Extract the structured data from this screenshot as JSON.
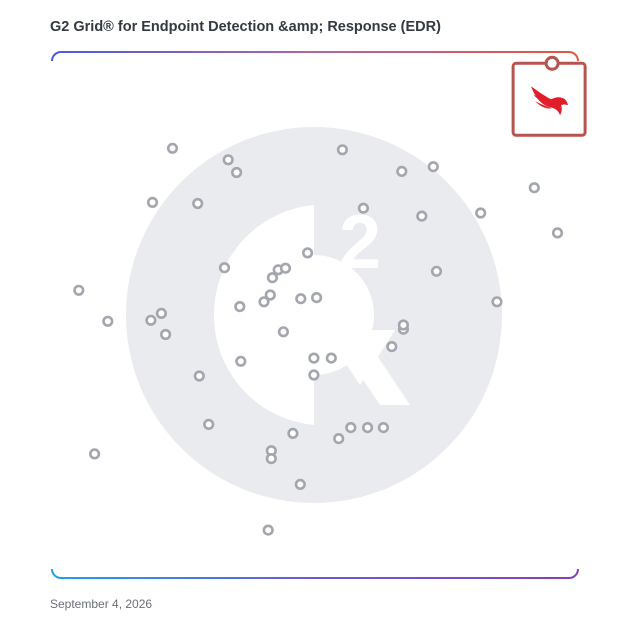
{
  "title": "G2 Grid® for Endpoint Detection &amp; Response (EDR)",
  "date": "September 4, 2026",
  "watermark": {
    "text": "2",
    "icon": "g2-logo-icon"
  },
  "colors": {
    "border_top_left": "#4a5bd9",
    "border_top_right": "#e8553a",
    "border_bottom_left": "#1fa3e0",
    "border_bottom_right": "#8a3fb8",
    "dot": "#a3a6ae",
    "highlight": "#b85450",
    "highlight_logo": "#e11d2a",
    "watermark": "#eaebee"
  },
  "chart_data": {
    "type": "scatter",
    "xlim": [
      0,
      100
    ],
    "ylim": [
      0,
      100
    ],
    "grid": true,
    "points": [
      {
        "x": 5.1,
        "y": 54.7
      },
      {
        "x": 8.1,
        "y": 23.6
      },
      {
        "x": 10.6,
        "y": 48.8
      },
      {
        "x": 18.8,
        "y": 49.0
      },
      {
        "x": 20.8,
        "y": 50.3
      },
      {
        "x": 21.6,
        "y": 46.3
      },
      {
        "x": 19.1,
        "y": 71.4
      },
      {
        "x": 22.9,
        "y": 81.7
      },
      {
        "x": 27.7,
        "y": 71.2
      },
      {
        "x": 29.8,
        "y": 29.2
      },
      {
        "x": 28.0,
        "y": 38.4
      },
      {
        "x": 32.8,
        "y": 59.0
      },
      {
        "x": 33.5,
        "y": 79.5
      },
      {
        "x": 35.1,
        "y": 77.1
      },
      {
        "x": 35.7,
        "y": 51.6
      },
      {
        "x": 35.9,
        "y": 41.2
      },
      {
        "x": 40.3,
        "y": 52.5
      },
      {
        "x": 41.5,
        "y": 53.8
      },
      {
        "x": 41.9,
        "y": 57.1
      },
      {
        "x": 43.0,
        "y": 58.6
      },
      {
        "x": 44.4,
        "y": 58.9
      },
      {
        "x": 44.0,
        "y": 46.8
      },
      {
        "x": 47.3,
        "y": 53.1
      },
      {
        "x": 48.6,
        "y": 61.8
      },
      {
        "x": 50.3,
        "y": 53.3
      },
      {
        "x": 49.8,
        "y": 41.8
      },
      {
        "x": 49.8,
        "y": 38.6
      },
      {
        "x": 53.1,
        "y": 41.8
      },
      {
        "x": 55.2,
        "y": 81.4
      },
      {
        "x": 59.2,
        "y": 70.3
      },
      {
        "x": 45.8,
        "y": 27.5
      },
      {
        "x": 41.7,
        "y": 24.2
      },
      {
        "x": 41.7,
        "y": 22.7
      },
      {
        "x": 47.2,
        "y": 17.8
      },
      {
        "x": 41.1,
        "y": 9.1
      },
      {
        "x": 54.5,
        "y": 26.5
      },
      {
        "x": 56.8,
        "y": 28.6
      },
      {
        "x": 60.0,
        "y": 28.6
      },
      {
        "x": 63.0,
        "y": 28.6
      },
      {
        "x": 64.6,
        "y": 44.0
      },
      {
        "x": 66.8,
        "y": 47.3
      },
      {
        "x": 66.8,
        "y": 48.1
      },
      {
        "x": 66.5,
        "y": 77.3
      },
      {
        "x": 70.3,
        "y": 68.8
      },
      {
        "x": 72.5,
        "y": 78.2
      },
      {
        "x": 73.1,
        "y": 58.3
      },
      {
        "x": 81.5,
        "y": 69.4
      },
      {
        "x": 84.6,
        "y": 52.5
      },
      {
        "x": 91.7,
        "y": 74.2
      },
      {
        "x": 96.1,
        "y": 65.6
      }
    ],
    "highlight": {
      "x": 94.5,
      "y": 91.0,
      "logo": "crowdstrike-falcon-icon"
    }
  }
}
